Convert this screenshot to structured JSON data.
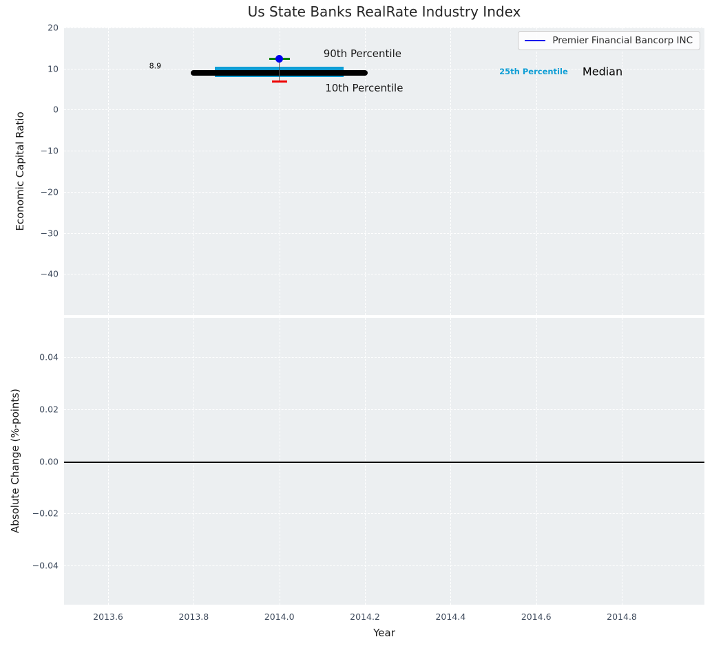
{
  "title": "Us State Banks RealRate Industry Index",
  "legend": {
    "label": "Premier Financial Bancorp INC",
    "color": "#0000ee"
  },
  "colors": {
    "plot_background": "#eceff1",
    "grid": "#ffffff",
    "tick_label": "#3e4a5c",
    "text": "#1a1a1a",
    "band": "#0f9ed5",
    "median": "#000000",
    "p90_cap": "#008000",
    "p10_cap": "#ee0000",
    "company_point": "#0000ee"
  },
  "chart_data": [
    {
      "type": "scatter",
      "panel": "economic-capital-ratio",
      "title": "Us State Banks RealRate Industry Index",
      "ylabel": "Economic Capital Ratio",
      "xlim": [
        2013.497,
        2014.993
      ],
      "ylim": [
        -50,
        20
      ],
      "grid": "white-dashed",
      "legend_position": "upper right",
      "xticks": [
        {
          "v": 2013.6,
          "label": "2013.6"
        },
        {
          "v": 2013.8,
          "label": "2013.8"
        },
        {
          "v": 2014.0,
          "label": "2014.0"
        },
        {
          "v": 2014.2,
          "label": "2014.2"
        },
        {
          "v": 2014.4,
          "label": "2014.4"
        },
        {
          "v": 2014.6,
          "label": "2014.6"
        },
        {
          "v": 2014.8,
          "label": "2014.8"
        }
      ],
      "yticks": [
        {
          "v": 20,
          "label": "20"
        },
        {
          "v": 10,
          "label": "10"
        },
        {
          "v": 0,
          "label": "0"
        },
        {
          "v": -10,
          "label": "−10"
        },
        {
          "v": -20,
          "label": "−20"
        },
        {
          "v": -30,
          "label": "−30"
        },
        {
          "v": -40,
          "label": "−40"
        }
      ],
      "series": [
        {
          "name": "25th-75th-percentile-band",
          "kind": "band",
          "x1": 2013.85,
          "x2": 2014.15,
          "y1": 7.9,
          "y2": 10.5,
          "color": "#0f9ed5"
        },
        {
          "name": "median-line",
          "kind": "hline",
          "x1": 2013.8,
          "x2": 2014.2,
          "y": 8.9,
          "color": "#000000",
          "thickness": 8
        },
        {
          "name": "percentile-whisker",
          "kind": "vline",
          "x": 2014.0,
          "y1": 6.8,
          "y2": 12.3,
          "color": "#555555"
        },
        {
          "name": "90th-percentile-cap",
          "kind": "cap",
          "x": 2014.0,
          "y": 12.3,
          "halfwidth": 0.024,
          "color": "#008000"
        },
        {
          "name": "10th-percentile-cap",
          "kind": "cap",
          "x": 2014.0,
          "y": 6.8,
          "halfwidth": 0.018,
          "color": "#ee0000"
        },
        {
          "name": "Premier Financial Bancorp INC",
          "kind": "point",
          "x": 2014.0,
          "y": 12.4,
          "color": "#0000ee"
        }
      ],
      "annotations": [
        {
          "name": "median-value",
          "text": "8.9",
          "x": 2013.71,
          "y": 10.7,
          "anchor": "center",
          "color": "#000000"
        },
        {
          "name": "p90",
          "text": "90th Percentile",
          "x": 2014.103,
          "y": 13.7,
          "anchor": "left",
          "color": "#1a1a1a"
        },
        {
          "name": "p10",
          "text": "10th Percentile",
          "x": 2014.107,
          "y": 5.3,
          "anchor": "left",
          "color": "#1a1a1a"
        },
        {
          "name": "p25",
          "text": "25th Percentile",
          "x": 2014.594,
          "y": 9.2,
          "anchor": "center",
          "color": "#0f9ed5"
        },
        {
          "name": "median",
          "text": "Median",
          "x": 2014.755,
          "y": 9.2,
          "anchor": "center",
          "color": "#000000"
        }
      ]
    },
    {
      "type": "bar",
      "panel": "absolute-change",
      "ylabel": "Absolute Change (%-points)",
      "xlabel": "Year",
      "xlim": [
        2013.497,
        2014.993
      ],
      "ylim": [
        -0.055,
        0.055
      ],
      "grid": "white-dashed",
      "zero_line": true,
      "xticks": [
        {
          "v": 2013.6,
          "label": "2013.6"
        },
        {
          "v": 2013.8,
          "label": "2013.8"
        },
        {
          "v": 2014.0,
          "label": "2014.0"
        },
        {
          "v": 2014.2,
          "label": "2014.2"
        },
        {
          "v": 2014.4,
          "label": "2014.4"
        },
        {
          "v": 2014.6,
          "label": "2014.6"
        },
        {
          "v": 2014.8,
          "label": "2014.8"
        }
      ],
      "yticks": [
        {
          "v": 0.04,
          "label": "0.04"
        },
        {
          "v": 0.02,
          "label": "0.02"
        },
        {
          "v": 0.0,
          "label": "0.00"
        },
        {
          "v": -0.02,
          "label": "−0.02"
        },
        {
          "v": -0.04,
          "label": "−0.04"
        }
      ],
      "series": []
    }
  ]
}
